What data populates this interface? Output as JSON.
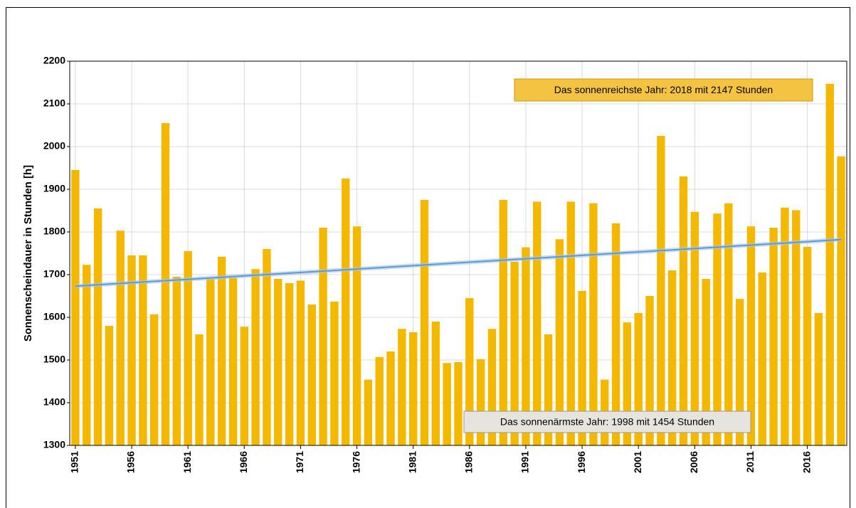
{
  "chart_data": {
    "type": "bar",
    "y_label": "Sonnenscheindauer in Stunden [h]",
    "categories": [
      "1951",
      null,
      null,
      null,
      null,
      "1956",
      null,
      null,
      null,
      null,
      "1961",
      null,
      null,
      null,
      null,
      "1966",
      null,
      null,
      null,
      null,
      "1971",
      null,
      null,
      null,
      null,
      "1976",
      null,
      null,
      null,
      null,
      "1981",
      null,
      null,
      null,
      null,
      "1986",
      null,
      null,
      null,
      null,
      "1991",
      null,
      null,
      null,
      null,
      "1996",
      null,
      null,
      null,
      null,
      "2001",
      null,
      null,
      null,
      null,
      "2006",
      null,
      null,
      null,
      null,
      "2011",
      null,
      null,
      null,
      null,
      "2016",
      null,
      null,
      null
    ],
    "values": [
      1945,
      1723,
      1855,
      1580,
      1803,
      1745,
      1745,
      1607,
      2055,
      1695,
      1755,
      1560,
      1690,
      1742,
      1693,
      1578,
      1713,
      1760,
      1690,
      1680,
      1686,
      1630,
      1810,
      1637,
      1925,
      1813,
      1454,
      1507,
      1520,
      1573,
      1565,
      1875,
      1590,
      1493,
      1495,
      1645,
      1502,
      1573,
      1875,
      1730,
      1764,
      1871,
      1560,
      1783,
      1871,
      1662,
      1867,
      1454,
      1820,
      1588,
      1610,
      1650,
      2025,
      1710,
      1930,
      1847,
      1690,
      1843,
      1867,
      1643,
      1813,
      1705,
      1810,
      1857,
      1851,
      1765,
      1610,
      2147,
      1977
    ],
    "color": "#f5b800",
    "trend": {
      "color": "#5b9bd5",
      "values": [
        1673,
        1782
      ]
    },
    "ylim": [
      1300,
      2200
    ],
    "yticks": [
      1300,
      1400,
      1500,
      1600,
      1700,
      1800,
      1900,
      2000,
      2100,
      2200
    ],
    "grid": true,
    "annotations": [
      {
        "text": "Das sonnenreichste Jahr: 2018 mit 2147 Stunden",
        "color": "#f5c342"
      },
      {
        "text": "Das sonnenärmste Jahr: 1998 mit 1454 Stunden",
        "color": "#e6e4df"
      }
    ]
  }
}
